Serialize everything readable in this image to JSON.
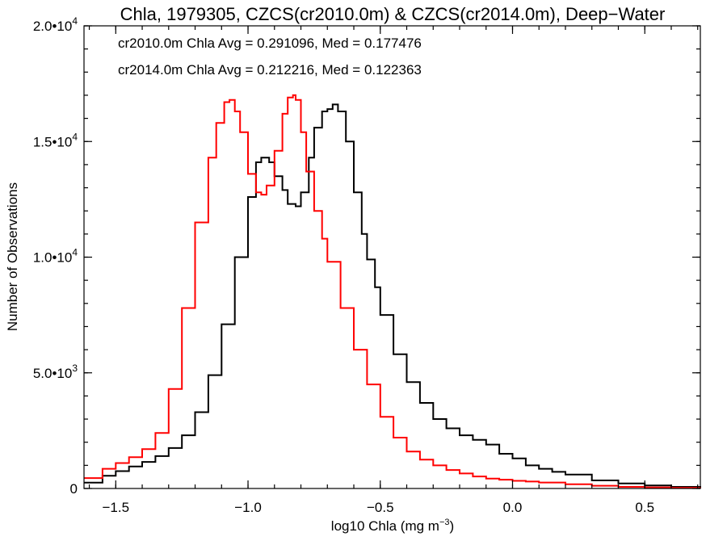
{
  "chart_data": {
    "type": "line",
    "step": true,
    "title": "Chla, 1979305, CZCS(cr2010.0m) & CZCS(cr2014.0m), Deep−Water",
    "xlabel_text": "log10 Chla (mg m",
    "xlabel_sup": "−3",
    "xlabel_end": ")",
    "ylabel": "Number of Observations",
    "xlim": [
      -1.62,
      0.71
    ],
    "ylim": [
      0,
      20000
    ],
    "grid": false,
    "x_ticks": [
      {
        "value": -1.5,
        "label": "−1.5"
      },
      {
        "value": -1.0,
        "label": "−1.0"
      },
      {
        "value": -0.5,
        "label": "−0.5"
      },
      {
        "value": 0.0,
        "label": "0.0"
      },
      {
        "value": 0.5,
        "label": "0.5"
      }
    ],
    "x_minor_step": 0.1,
    "y_ticks": [
      {
        "value": 0,
        "mantissa": "0",
        "exp": ""
      },
      {
        "value": 5000,
        "mantissa": "5.0•10",
        "exp": "3"
      },
      {
        "value": 10000,
        "mantissa": "1.0•10",
        "exp": "4"
      },
      {
        "value": 15000,
        "mantissa": "1.5•10",
        "exp": "4"
      },
      {
        "value": 20000,
        "mantissa": "2.0•10",
        "exp": "4"
      }
    ],
    "y_minor_step": 1000,
    "annotations": [
      {
        "text": "cr2010.0m Chla Avg = 0.291096, Med = 0.177476",
        "color": "#000000"
      },
      {
        "text": "cr2014.0m Chla Avg = 0.212216, Med = 0.122363",
        "color": "#ff0000"
      }
    ],
    "series": [
      {
        "color": "#000000",
        "x": [
          -1.62,
          -1.55,
          -1.5,
          -1.45,
          -1.4,
          -1.35,
          -1.3,
          -1.25,
          -1.2,
          -1.15,
          -1.1,
          -1.05,
          -1.0,
          -0.97,
          -0.95,
          -0.92,
          -0.9,
          -0.87,
          -0.85,
          -0.82,
          -0.8,
          -0.77,
          -0.75,
          -0.72,
          -0.7,
          -0.68,
          -0.66,
          -0.63,
          -0.6,
          -0.57,
          -0.55,
          -0.52,
          -0.5,
          -0.45,
          -0.4,
          -0.35,
          -0.3,
          -0.25,
          -0.2,
          -0.15,
          -0.1,
          -0.05,
          0.0,
          0.05,
          0.1,
          0.15,
          0.2,
          0.3,
          0.4,
          0.5,
          0.6,
          0.71
        ],
        "y": [
          250,
          550,
          750,
          950,
          1150,
          1400,
          1750,
          2300,
          3300,
          4900,
          7100,
          10000,
          12600,
          14100,
          14300,
          14100,
          13500,
          12900,
          12300,
          12200,
          12800,
          14300,
          15600,
          16300,
          16400,
          16600,
          16300,
          15000,
          12800,
          11000,
          9900,
          8700,
          7500,
          5800,
          4600,
          3700,
          3000,
          2600,
          2300,
          2100,
          1900,
          1500,
          1300,
          1000,
          850,
          720,
          600,
          350,
          220,
          130,
          70,
          20
        ]
      },
      {
        "color": "#ff0000",
        "x": [
          -1.62,
          -1.55,
          -1.5,
          -1.45,
          -1.4,
          -1.35,
          -1.3,
          -1.25,
          -1.2,
          -1.15,
          -1.12,
          -1.09,
          -1.07,
          -1.05,
          -1.03,
          -1.0,
          -0.97,
          -0.95,
          -0.93,
          -0.9,
          -0.87,
          -0.85,
          -0.83,
          -0.82,
          -0.8,
          -0.78,
          -0.75,
          -0.72,
          -0.7,
          -0.65,
          -0.6,
          -0.55,
          -0.5,
          -0.45,
          -0.4,
          -0.35,
          -0.3,
          -0.25,
          -0.2,
          -0.15,
          -0.1,
          -0.05,
          0.0,
          0.05,
          0.1,
          0.2,
          0.3,
          0.4,
          0.5,
          0.6,
          0.71
        ],
        "y": [
          450,
          850,
          1100,
          1350,
          1700,
          2400,
          4300,
          7800,
          11500,
          14300,
          15800,
          16700,
          16800,
          16300,
          15400,
          13600,
          12800,
          12700,
          13100,
          14600,
          16200,
          16900,
          17000,
          16800,
          15400,
          13700,
          12000,
          10800,
          9800,
          7800,
          6000,
          4500,
          3100,
          2200,
          1600,
          1250,
          1000,
          800,
          650,
          520,
          430,
          380,
          330,
          300,
          260,
          180,
          120,
          70,
          50,
          30,
          10
        ]
      }
    ]
  }
}
